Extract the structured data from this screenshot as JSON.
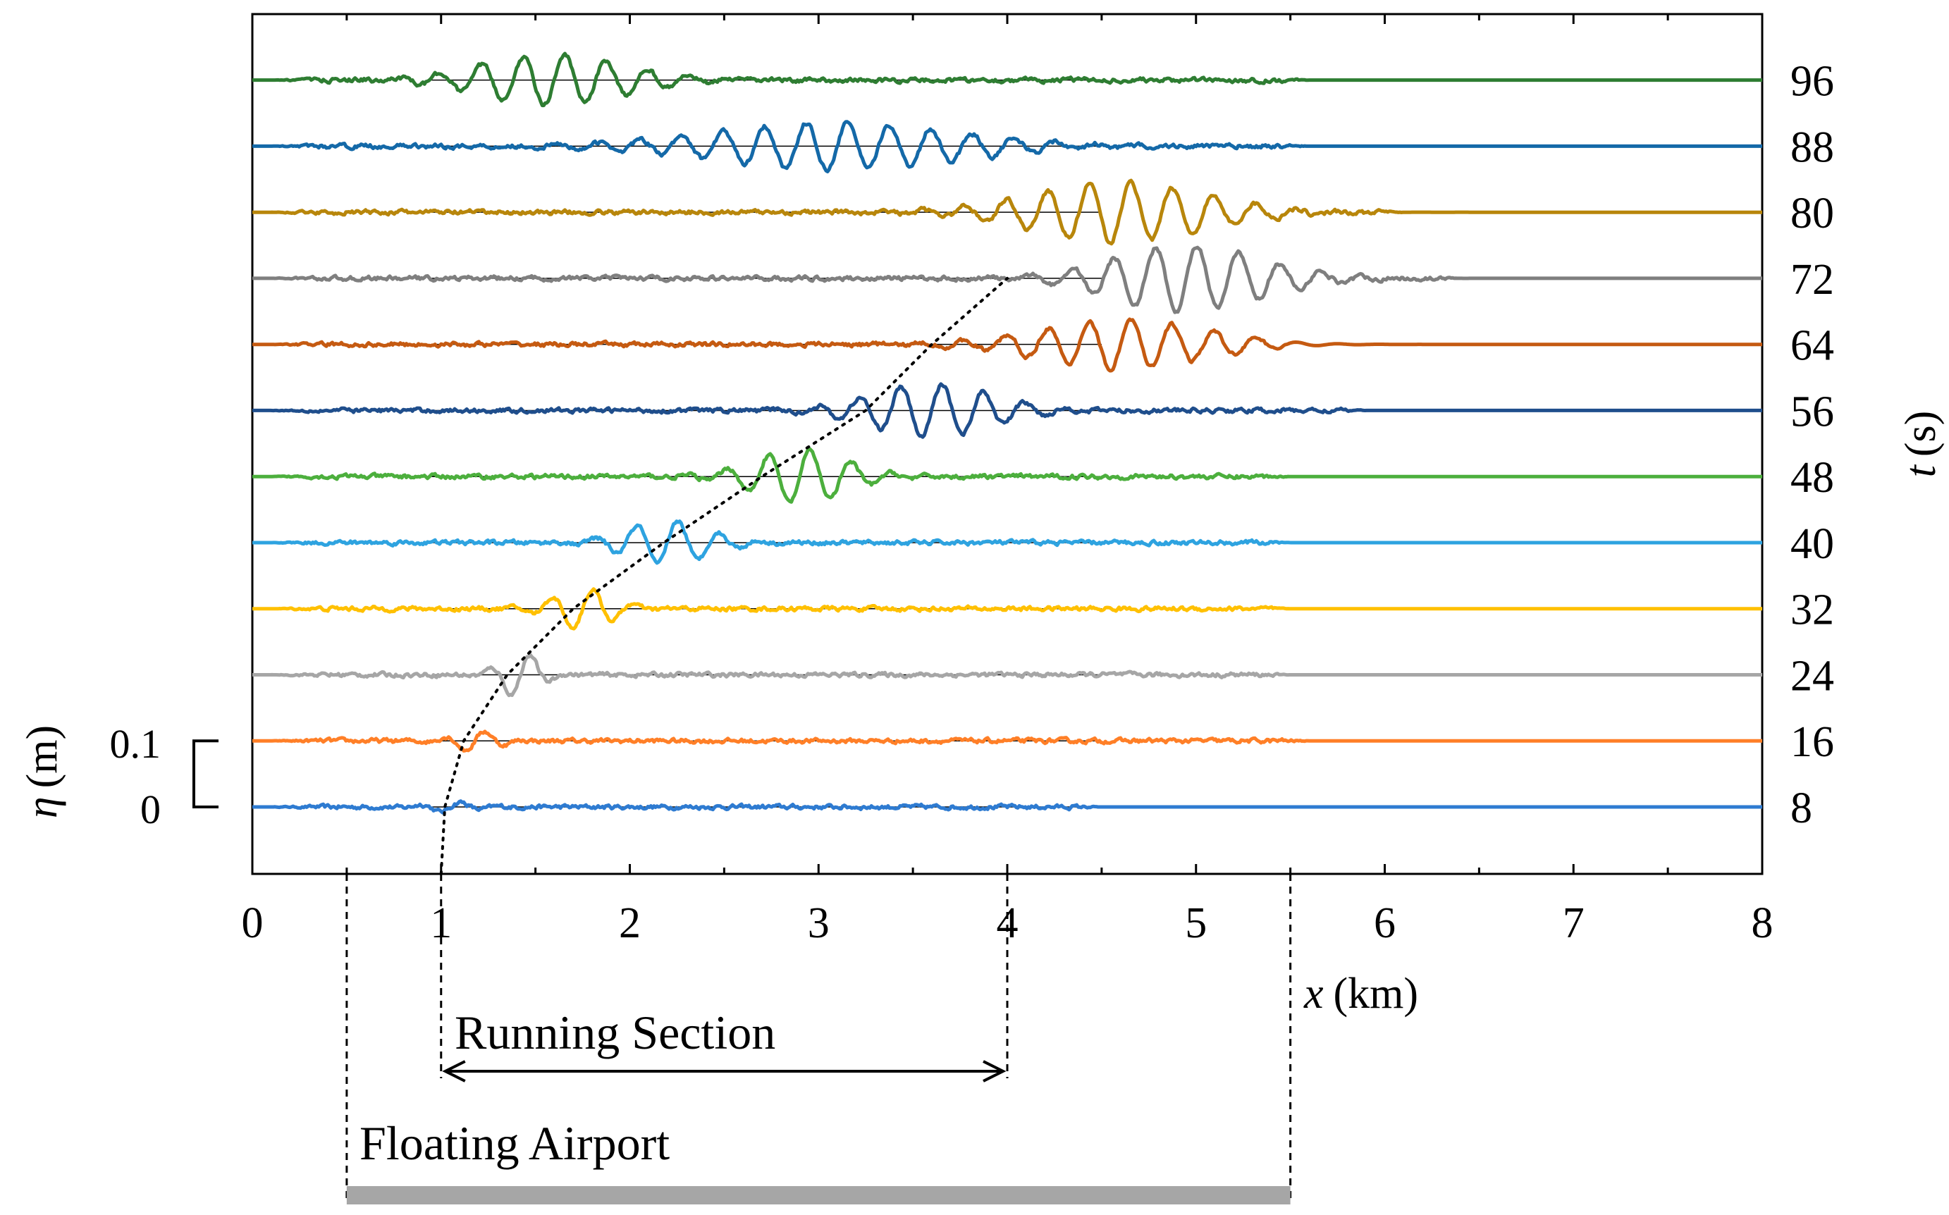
{
  "chart_data": {
    "type": "line",
    "title": "",
    "xlabel_var": "x",
    "xlabel_unit": "(km)",
    "ylabel_left_var": "η",
    "ylabel_left_unit": "(m)",
    "ylabel_right_var": "t",
    "ylabel_right_unit": "(s)",
    "xlim": [
      0,
      8
    ],
    "x_ticks": [
      "0",
      "1",
      "2",
      "3",
      "4",
      "5",
      "6",
      "7",
      "8"
    ],
    "scale_bar": {
      "low_label": "0",
      "high_label": "0.1",
      "low": 0,
      "high": 0.1
    },
    "series": [
      {
        "name": "8",
        "t": 8,
        "color": "#2e7bd1",
        "packet_center_km": 1.05,
        "packet_width_km": 0.18,
        "amplitude_m": 0.008,
        "wavelength_km": 0.22,
        "noise_end_km": 4.5
      },
      {
        "name": "16",
        "t": 16,
        "color": "#ff7f27",
        "packet_center_km": 1.18,
        "packet_width_km": 0.16,
        "amplitude_m": 0.016,
        "wavelength_km": 0.22,
        "noise_end_km": 5.6
      },
      {
        "name": "24",
        "t": 24,
        "color": "#a6a6a6",
        "packet_center_km": 1.42,
        "packet_width_km": 0.14,
        "amplitude_m": 0.034,
        "wavelength_km": 0.22,
        "noise_end_km": 5.5
      },
      {
        "name": "32",
        "t": 32,
        "color": "#ffc000",
        "packet_center_km": 1.75,
        "packet_width_km": 0.22,
        "amplitude_m": 0.03,
        "wavelength_km": 0.22,
        "noise_end_km": 5.5
      },
      {
        "name": "40",
        "t": 40,
        "color": "#2ea3e0",
        "packet_center_km": 2.2,
        "packet_width_km": 0.3,
        "amplitude_m": 0.034,
        "wavelength_km": 0.22,
        "noise_end_km": 5.5
      },
      {
        "name": "48",
        "t": 48,
        "color": "#4caf3d",
        "packet_center_km": 2.9,
        "packet_width_km": 0.35,
        "amplitude_m": 0.04,
        "wavelength_km": 0.22,
        "noise_end_km": 5.5
      },
      {
        "name": "56",
        "t": 56,
        "color": "#1f4e8c",
        "packet_center_km": 3.6,
        "packet_width_km": 0.45,
        "amplitude_m": 0.04,
        "wavelength_km": 0.22,
        "noise_end_km": 5.9
      },
      {
        "name": "64",
        "t": 64,
        "color": "#c55a11",
        "packet_center_km": 4.6,
        "packet_width_km": 0.6,
        "amplitude_m": 0.038,
        "wavelength_km": 0.22,
        "noise_end_km": 5.5
      },
      {
        "name": "72",
        "t": 72,
        "color": "#7f7f7f",
        "packet_center_km": 4.95,
        "packet_width_km": 0.55,
        "amplitude_m": 0.05,
        "wavelength_km": 0.22,
        "noise_end_km": 6.4
      },
      {
        "name": "80",
        "t": 80,
        "color": "#b8860b",
        "packet_center_km": 4.6,
        "packet_width_km": 0.65,
        "amplitude_m": 0.045,
        "wavelength_km": 0.22,
        "noise_end_km": 6.1
      },
      {
        "name": "88",
        "t": 88,
        "color": "#1469a8",
        "packet_center_km": 3.1,
        "packet_width_km": 0.9,
        "amplitude_m": 0.036,
        "wavelength_km": 0.22,
        "noise_end_km": 5.6
      },
      {
        "name": "96",
        "t": 96,
        "color": "#2e7d32",
        "packet_center_km": 1.6,
        "packet_width_km": 0.55,
        "amplitude_m": 0.038,
        "wavelength_km": 0.22,
        "noise_end_km": 5.6
      }
    ],
    "wavefront": [
      {
        "t": 8,
        "x_km": 1.02
      },
      {
        "t": 16,
        "x_km": 1.12
      },
      {
        "t": 24,
        "x_km": 1.35
      },
      {
        "t": 32,
        "x_km": 1.7
      },
      {
        "t": 40,
        "x_km": 2.18
      },
      {
        "t": 48,
        "x_km": 2.7
      },
      {
        "t": 56,
        "x_km": 3.25
      },
      {
        "t": 64,
        "x_km": 3.6
      },
      {
        "t": 72,
        "x_km": 4.0
      }
    ],
    "wavefront_start_x_km": 1.0,
    "annotations": {
      "running_section": {
        "label": "Running Section",
        "x_start_km": 1,
        "x_end_km": 4
      },
      "floating_airport": {
        "label": "Floating Airport",
        "x_start_km": 0.5,
        "x_end_km": 5.5
      }
    },
    "colors": {
      "axis": "#000000",
      "airport_bar": "#a6a6a6",
      "baseline": "#000000"
    }
  }
}
